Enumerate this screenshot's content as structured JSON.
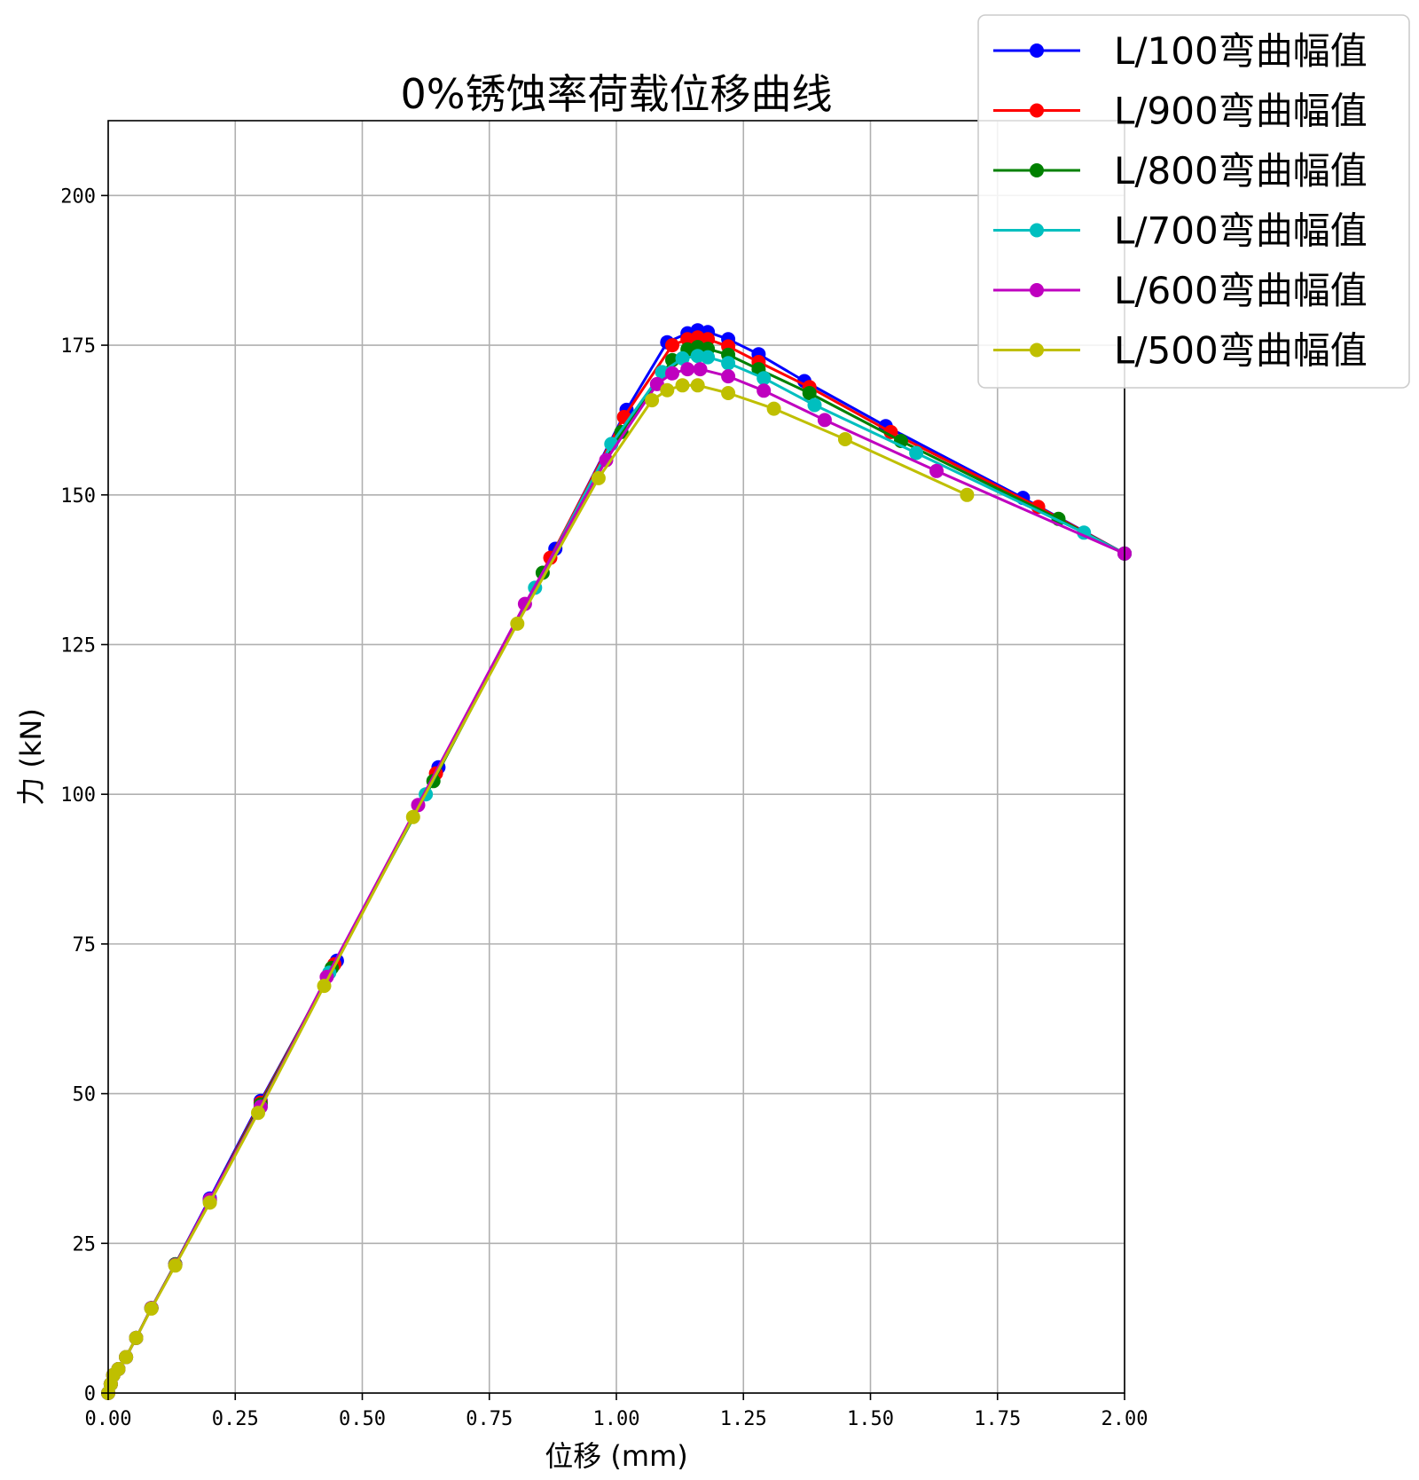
{
  "chart_data": {
    "type": "line",
    "title": "0%锈蚀率荷载位移曲线",
    "xlabel": "位移 (mm)",
    "ylabel": "力 (kN)",
    "xlim": [
      0,
      2.0
    ],
    "ylim": [
      0,
      212.5
    ],
    "xticks": [
      0,
      0.25,
      0.5,
      0.75,
      1.0,
      1.25,
      1.5,
      1.75,
      2.0
    ],
    "xtick_labels": [
      "0.00",
      "0.25",
      "0.50",
      "0.75",
      "1.00",
      "1.25",
      "1.50",
      "1.75",
      "2.00"
    ],
    "yticks": [
      0,
      25,
      50,
      75,
      100,
      125,
      150,
      175,
      200
    ],
    "ytick_labels": [
      "0",
      "25",
      "50",
      "75",
      "100",
      "125",
      "150",
      "175",
      "200"
    ],
    "grid": true,
    "legend_position": "top-right",
    "series": [
      {
        "name": "L/100弯曲幅值",
        "color": "#0000ff",
        "points": [
          [
            0,
            0
          ],
          [
            0.005,
            1.5
          ],
          [
            0.01,
            3
          ],
          [
            0.02,
            4
          ],
          [
            0.035,
            6
          ],
          [
            0.055,
            9.2
          ],
          [
            0.085,
            14.2
          ],
          [
            0.132,
            21.5
          ],
          [
            0.2,
            32.5
          ],
          [
            0.3,
            48.8
          ],
          [
            0.45,
            72.2
          ],
          [
            0.65,
            104.5
          ],
          [
            0.88,
            141
          ],
          [
            1.02,
            164.2
          ],
          [
            1.1,
            175.5
          ],
          [
            1.14,
            177
          ],
          [
            1.16,
            177.5
          ],
          [
            1.18,
            177.2
          ],
          [
            1.22,
            176
          ],
          [
            1.28,
            173.5
          ],
          [
            1.37,
            169
          ],
          [
            1.53,
            161.5
          ],
          [
            1.8,
            149.5
          ],
          [
            2.0,
            140.2
          ]
        ]
      },
      {
        "name": "L/900弯曲幅值",
        "color": "#ff0000",
        "points": [
          [
            0,
            0
          ],
          [
            0.005,
            1.5
          ],
          [
            0.01,
            3
          ],
          [
            0.02,
            4
          ],
          [
            0.035,
            6
          ],
          [
            0.055,
            9.2
          ],
          [
            0.085,
            14.2
          ],
          [
            0.132,
            21.5
          ],
          [
            0.2,
            32.2
          ],
          [
            0.3,
            48.5
          ],
          [
            0.445,
            71.6
          ],
          [
            0.645,
            103.5
          ],
          [
            0.87,
            139.5
          ],
          [
            1.015,
            163
          ],
          [
            1.11,
            175
          ],
          [
            1.14,
            176
          ],
          [
            1.16,
            176.3
          ],
          [
            1.18,
            176
          ],
          [
            1.22,
            174.8
          ],
          [
            1.28,
            172.2
          ],
          [
            1.38,
            168
          ],
          [
            1.54,
            160.5
          ],
          [
            1.83,
            148
          ],
          [
            2.0,
            140.2
          ]
        ]
      },
      {
        "name": "L/800弯曲幅值",
        "color": "#008000",
        "points": [
          [
            0,
            0
          ],
          [
            0.005,
            1.5
          ],
          [
            0.01,
            3
          ],
          [
            0.02,
            4
          ],
          [
            0.035,
            6
          ],
          [
            0.055,
            9.2
          ],
          [
            0.085,
            14.2
          ],
          [
            0.132,
            21.5
          ],
          [
            0.2,
            32.2
          ],
          [
            0.3,
            48.2
          ],
          [
            0.44,
            71
          ],
          [
            0.64,
            102.2
          ],
          [
            0.855,
            137
          ],
          [
            1.01,
            160.5
          ],
          [
            1.11,
            172.5
          ],
          [
            1.14,
            174.3
          ],
          [
            1.16,
            174.7
          ],
          [
            1.18,
            174.4
          ],
          [
            1.22,
            173.4
          ],
          [
            1.28,
            171
          ],
          [
            1.38,
            167
          ],
          [
            1.56,
            159
          ],
          [
            1.87,
            146
          ],
          [
            2.0,
            140.2
          ]
        ]
      },
      {
        "name": "L/700弯曲幅值",
        "color": "#00bfbf",
        "points": [
          [
            0,
            0
          ],
          [
            0.005,
            1.5
          ],
          [
            0.01,
            3
          ],
          [
            0.02,
            4
          ],
          [
            0.035,
            6
          ],
          [
            0.055,
            9.2
          ],
          [
            0.085,
            14.2
          ],
          [
            0.132,
            21.4
          ],
          [
            0.2,
            32
          ],
          [
            0.3,
            47.8
          ],
          [
            0.435,
            70.2
          ],
          [
            0.625,
            100
          ],
          [
            0.84,
            134.5
          ],
          [
            0.99,
            158.5
          ],
          [
            1.09,
            170.5
          ],
          [
            1.13,
            172.8
          ],
          [
            1.16,
            173.2
          ],
          [
            1.18,
            173
          ],
          [
            1.22,
            172
          ],
          [
            1.29,
            169.5
          ],
          [
            1.39,
            165
          ],
          [
            1.59,
            157
          ],
          [
            1.92,
            143.7
          ],
          [
            2.0,
            140.2
          ]
        ]
      },
      {
        "name": "L/600弯曲幅值",
        "color": "#bf00bf",
        "points": [
          [
            0,
            0
          ],
          [
            0.005,
            1.5
          ],
          [
            0.01,
            3
          ],
          [
            0.02,
            4
          ],
          [
            0.035,
            6
          ],
          [
            0.055,
            9.2
          ],
          [
            0.085,
            14.2
          ],
          [
            0.132,
            21.4
          ],
          [
            0.2,
            32.3
          ],
          [
            0.3,
            47.8
          ],
          [
            0.43,
            69.5
          ],
          [
            0.61,
            98.2
          ],
          [
            0.82,
            131.8
          ],
          [
            0.98,
            155.8
          ],
          [
            1.08,
            168.5
          ],
          [
            1.11,
            170.3
          ],
          [
            1.14,
            171
          ],
          [
            1.165,
            171
          ],
          [
            1.22,
            169.8
          ],
          [
            1.29,
            167.4
          ],
          [
            1.41,
            162.5
          ],
          [
            1.63,
            154
          ],
          [
            2.0,
            140.2
          ]
        ]
      },
      {
        "name": "L/500弯曲幅值",
        "color": "#bfbf00",
        "points": [
          [
            0,
            0
          ],
          [
            0.005,
            1.5
          ],
          [
            0.01,
            3
          ],
          [
            0.02,
            4
          ],
          [
            0.035,
            6
          ],
          [
            0.055,
            9.2
          ],
          [
            0.085,
            14.1
          ],
          [
            0.132,
            21.3
          ],
          [
            0.2,
            31.8
          ],
          [
            0.295,
            46.8
          ],
          [
            0.425,
            68
          ],
          [
            0.6,
            96.2
          ],
          [
            0.805,
            128.5
          ],
          [
            0.965,
            152.8
          ],
          [
            1.07,
            165.8
          ],
          [
            1.1,
            167.5
          ],
          [
            1.13,
            168.3
          ],
          [
            1.16,
            168.3
          ],
          [
            1.22,
            167
          ],
          [
            1.31,
            164.4
          ],
          [
            1.45,
            159.3
          ],
          [
            1.69,
            150
          ]
        ]
      }
    ]
  }
}
